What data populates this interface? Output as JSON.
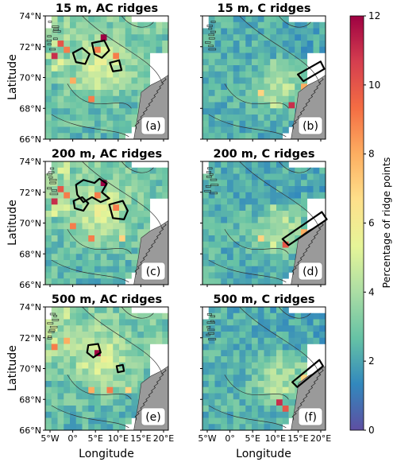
{
  "chart_data": {
    "type": "heatmap",
    "colorbar": {
      "label": "Percentage of ridge points",
      "range": [
        0,
        12
      ],
      "ticks": [
        "0",
        "2",
        "4",
        "6",
        "8",
        "10",
        "12"
      ],
      "colormap": [
        "#5e4fa2",
        "#3288bd",
        "#66c2a5",
        "#abdda4",
        "#e6f598",
        "#fee08b",
        "#fdae61",
        "#f46d43",
        "#d53e4f",
        "#9e0142"
      ]
    },
    "y_axis": {
      "label": "Latitude",
      "ticks": [
        "66°N",
        "68°N",
        "70°N",
        "72°N",
        "74°N"
      ]
    },
    "x_axis": {
      "label": "Longitude",
      "ticks": [
        "5°W",
        "0°",
        "5°E",
        "10°E",
        "15°E",
        "20°E"
      ]
    },
    "panels": [
      {
        "id": "a",
        "title": "15 m, AC ridges",
        "label": "(a)",
        "kind": "AC",
        "hot": [
          [
            1,
            6,
            11
          ],
          [
            2,
            4,
            10
          ],
          [
            3,
            5,
            9
          ],
          [
            9,
            3,
            12
          ],
          [
            8,
            5,
            9
          ],
          [
            4,
            10,
            8
          ],
          [
            7,
            13,
            9
          ],
          [
            11,
            6,
            9
          ]
        ],
        "contours": [
          [
            [
              4.5,
              6.0
            ],
            [
              6.0,
              5.2
            ],
            [
              7.2,
              6.2
            ],
            [
              6.5,
              7.8
            ],
            [
              5.0,
              7.5
            ]
          ],
          [
            [
              7.6,
              4.4
            ],
            [
              9.6,
              4.0
            ],
            [
              10.4,
              5.6
            ],
            [
              9.2,
              6.8
            ],
            [
              8.0,
              6.2
            ]
          ],
          [
            [
              10.5,
              7.6
            ],
            [
              12.0,
              7.2
            ],
            [
              12.4,
              8.8
            ],
            [
              11.0,
              9.0
            ]
          ]
        ]
      },
      {
        "id": "b",
        "title": "15 m, C ridges",
        "label": "(b)",
        "kind": "C",
        "hot": [
          [
            14,
            14,
            11
          ],
          [
            9,
            12,
            7
          ],
          [
            16,
            11,
            8
          ]
        ],
        "contours": [
          [
            [
              15.5,
              9.5
            ],
            [
              19.2,
              7.4
            ],
            [
              19.8,
              8.6
            ],
            [
              16.4,
              10.6
            ]
          ]
        ]
      },
      {
        "id": "c",
        "title": "200 m, AC ridges",
        "label": "(c)",
        "kind": "AC",
        "hot": [
          [
            1,
            6,
            11
          ],
          [
            2,
            4,
            10
          ],
          [
            3,
            5,
            9
          ],
          [
            9,
            3,
            12
          ],
          [
            8,
            5,
            9
          ],
          [
            4,
            10,
            9
          ],
          [
            11,
            7,
            9
          ],
          [
            7,
            12,
            9
          ],
          [
            12,
            12,
            7
          ]
        ],
        "contours": [
          [
            [
              5.0,
              3.8
            ],
            [
              6.2,
              3.0
            ],
            [
              8.0,
              3.5
            ],
            [
              8.8,
              2.8
            ],
            [
              10.0,
              3.6
            ],
            [
              9.2,
              5.0
            ],
            [
              10.4,
              6.0
            ],
            [
              9.0,
              6.6
            ],
            [
              7.6,
              5.8
            ],
            [
              6.2,
              6.6
            ],
            [
              5.2,
              5.4
            ]
          ],
          [
            [
              4.6,
              6.4
            ],
            [
              6.0,
              5.8
            ],
            [
              7.0,
              6.8
            ],
            [
              6.2,
              8.0
            ],
            [
              4.8,
              7.6
            ]
          ],
          [
            [
              10.4,
              7.0
            ],
            [
              12.6,
              6.4
            ],
            [
              13.4,
              8.0
            ],
            [
              12.8,
              9.4
            ],
            [
              11.0,
              9.2
            ]
          ]
        ]
      },
      {
        "id": "d",
        "title": "200 m, C ridges",
        "label": "(d)",
        "kind": "C",
        "hot": [
          [
            13,
            13,
            10
          ],
          [
            9,
            12,
            7
          ],
          [
            16,
            11,
            8
          ]
        ],
        "contours": [
          [
            [
              13.0,
              12.6
            ],
            [
              19.4,
              8.2
            ],
            [
              20.2,
              9.4
            ],
            [
              14.0,
              13.6
            ]
          ]
        ]
      },
      {
        "id": "e",
        "title": "500 m, AC ridges",
        "label": "(e)",
        "kind": "AC",
        "hot": [
          [
            1,
            6,
            9
          ],
          [
            3,
            5,
            8
          ],
          [
            8,
            7,
            12
          ],
          [
            10,
            13,
            9
          ],
          [
            7,
            13,
            8
          ],
          [
            13,
            13,
            7
          ]
        ],
        "contours": [
          [
            [
              7.0,
              6.2
            ],
            [
              8.6,
              6.0
            ],
            [
              9.0,
              7.4
            ],
            [
              7.8,
              8.2
            ],
            [
              6.8,
              7.4
            ]
          ],
          [
            [
              11.6,
              9.6
            ],
            [
              12.6,
              9.4
            ],
            [
              12.8,
              10.4
            ],
            [
              11.8,
              10.6
            ]
          ]
        ]
      },
      {
        "id": "f",
        "title": "500 m, C ridges",
        "label": "(f)",
        "kind": "C",
        "hot": [
          [
            12,
            15,
            11
          ],
          [
            13,
            16,
            10
          ],
          [
            16,
            11,
            7
          ]
        ],
        "contours": [
          [
            [
              14.6,
              12.2
            ],
            [
              19.0,
              8.6
            ],
            [
              19.6,
              9.6
            ],
            [
              15.4,
              13.0
            ]
          ]
        ]
      }
    ]
  }
}
